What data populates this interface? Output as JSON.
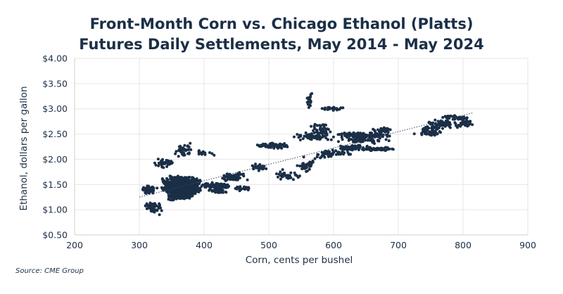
{
  "chart_data": {
    "type": "scatter",
    "title": [
      "Front-Month Corn vs. Chicago Ethanol (Platts)",
      "Futures Daily Settlements, May 2014 - May 2024"
    ],
    "xlabel": "Corn, cents per bushel",
    "ylabel": "Ethanol, dollars per gallon",
    "xlim": [
      200,
      900
    ],
    "ylim": [
      0.5,
      4.0
    ],
    "x_ticks": [
      "200",
      "300",
      "400",
      "500",
      "600",
      "700",
      "800",
      "900"
    ],
    "y_ticks": [
      "$0.50",
      "$1.00",
      "$1.50",
      "$2.00",
      "$2.50",
      "$3.00",
      "$3.50",
      "$4.00"
    ],
    "grid": true,
    "legend": "none",
    "trendline": {
      "style": "dotted",
      "from": [
        300,
        1.25
      ],
      "to": [
        815,
        2.92
      ]
    },
    "series_color": "#1b2f47",
    "clusters": [
      {
        "x": [
          330,
          400
        ],
        "y": [
          1.25,
          1.7
        ],
        "n": 900
      },
      {
        "x": [
          340,
          385
        ],
        "y": [
          1.15,
          1.55
        ],
        "n": 500
      },
      {
        "x": [
          300,
          330
        ],
        "y": [
          1.3,
          1.5
        ],
        "n": 60
      },
      {
        "x": [
          305,
          340
        ],
        "y": [
          0.85,
          1.2
        ],
        "n": 50
      },
      {
        "x": [
          320,
          360
        ],
        "y": [
          1.8,
          2.05
        ],
        "n": 35
      },
      {
        "x": [
          350,
          385
        ],
        "y": [
          2.0,
          2.35
        ],
        "n": 45
      },
      {
        "x": [
          380,
          420
        ],
        "y": [
          2.05,
          2.2
        ],
        "n": 20
      },
      {
        "x": [
          390,
          450
        ],
        "y": [
          1.4,
          1.55
        ],
        "n": 120
      },
      {
        "x": [
          420,
          470
        ],
        "y": [
          1.55,
          1.75
        ],
        "n": 80
      },
      {
        "x": [
          400,
          440
        ],
        "y": [
          1.3,
          1.45
        ],
        "n": 40
      },
      {
        "x": [
          470,
          500
        ],
        "y": [
          1.75,
          1.95
        ],
        "n": 30
      },
      {
        "x": [
          440,
          480
        ],
        "y": [
          1.35,
          1.5
        ],
        "n": 25
      },
      {
        "x": [
          470,
          540
        ],
        "y": [
          2.2,
          2.35
        ],
        "n": 80
      },
      {
        "x": [
          535,
          600
        ],
        "y": [
          2.35,
          2.55
        ],
        "n": 70
      },
      {
        "x": [
          555,
          570
        ],
        "y": [
          2.95,
          3.4
        ],
        "n": 20
      },
      {
        "x": [
          575,
          620
        ],
        "y": [
          2.95,
          3.05
        ],
        "n": 30
      },
      {
        "x": [
          560,
          600
        ],
        "y": [
          2.45,
          2.75
        ],
        "n": 40
      },
      {
        "x": [
          590,
          700
        ],
        "y": [
          2.4,
          2.55
        ],
        "n": 150
      },
      {
        "x": [
          600,
          660
        ],
        "y": [
          2.15,
          2.3
        ],
        "n": 60
      },
      {
        "x": [
          640,
          700
        ],
        "y": [
          2.15,
          2.25
        ],
        "n": 60
      },
      {
        "x": [
          600,
          700
        ],
        "y": [
          2.3,
          2.45
        ],
        "n": 60
      },
      {
        "x": [
          655,
          700
        ],
        "y": [
          2.5,
          2.65
        ],
        "n": 30
      },
      {
        "x": [
          500,
          560
        ],
        "y": [
          1.55,
          1.8
        ],
        "n": 35
      },
      {
        "x": [
          540,
          580
        ],
        "y": [
          1.7,
          2.05
        ],
        "n": 40
      },
      {
        "x": [
          560,
          610
        ],
        "y": [
          2.0,
          2.2
        ],
        "n": 30
      },
      {
        "x": [
          580,
          640
        ],
        "y": [
          2.05,
          2.2
        ],
        "n": 30
      },
      {
        "x": [
          720,
          780
        ],
        "y": [
          2.45,
          2.6
        ],
        "n": 50
      },
      {
        "x": [
          740,
          800
        ],
        "y": [
          2.6,
          2.8
        ],
        "n": 60
      },
      {
        "x": [
          760,
          815
        ],
        "y": [
          2.75,
          2.9
        ],
        "n": 40
      },
      {
        "x": [
          790,
          818
        ],
        "y": [
          2.62,
          2.8
        ],
        "n": 30
      },
      {
        "x": [
          730,
          780
        ],
        "y": [
          2.55,
          2.7
        ],
        "n": 30
      }
    ]
  },
  "source": "Source: CME Group"
}
